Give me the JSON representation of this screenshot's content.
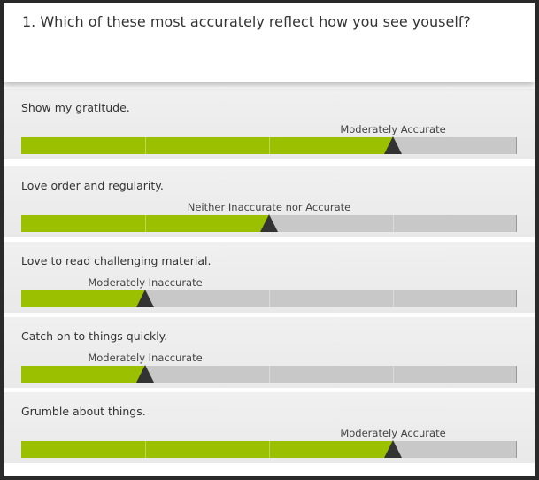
{
  "question": "1. Which of these most accurately reflect how you see youself?",
  "scale": {
    "min": 1,
    "max": 5
  },
  "colors": {
    "fill": "#9bc000",
    "track": "#c8c8c8",
    "thumb": "#333333"
  },
  "items": [
    {
      "label": "Show my gratitude.",
      "value": 4,
      "value_label": "Moderately Accurate"
    },
    {
      "label": "Love order and regularity.",
      "value": 3,
      "value_label": "Neither Inaccurate nor Accurate"
    },
    {
      "label": "Love to read challenging material.",
      "value": 2,
      "value_label": "Moderately Inaccurate"
    },
    {
      "label": "Catch on to things quickly.",
      "value": 2,
      "value_label": "Moderately Inaccurate"
    },
    {
      "label": "Grumble about things.",
      "value": 4,
      "value_label": "Moderately Accurate"
    }
  ]
}
